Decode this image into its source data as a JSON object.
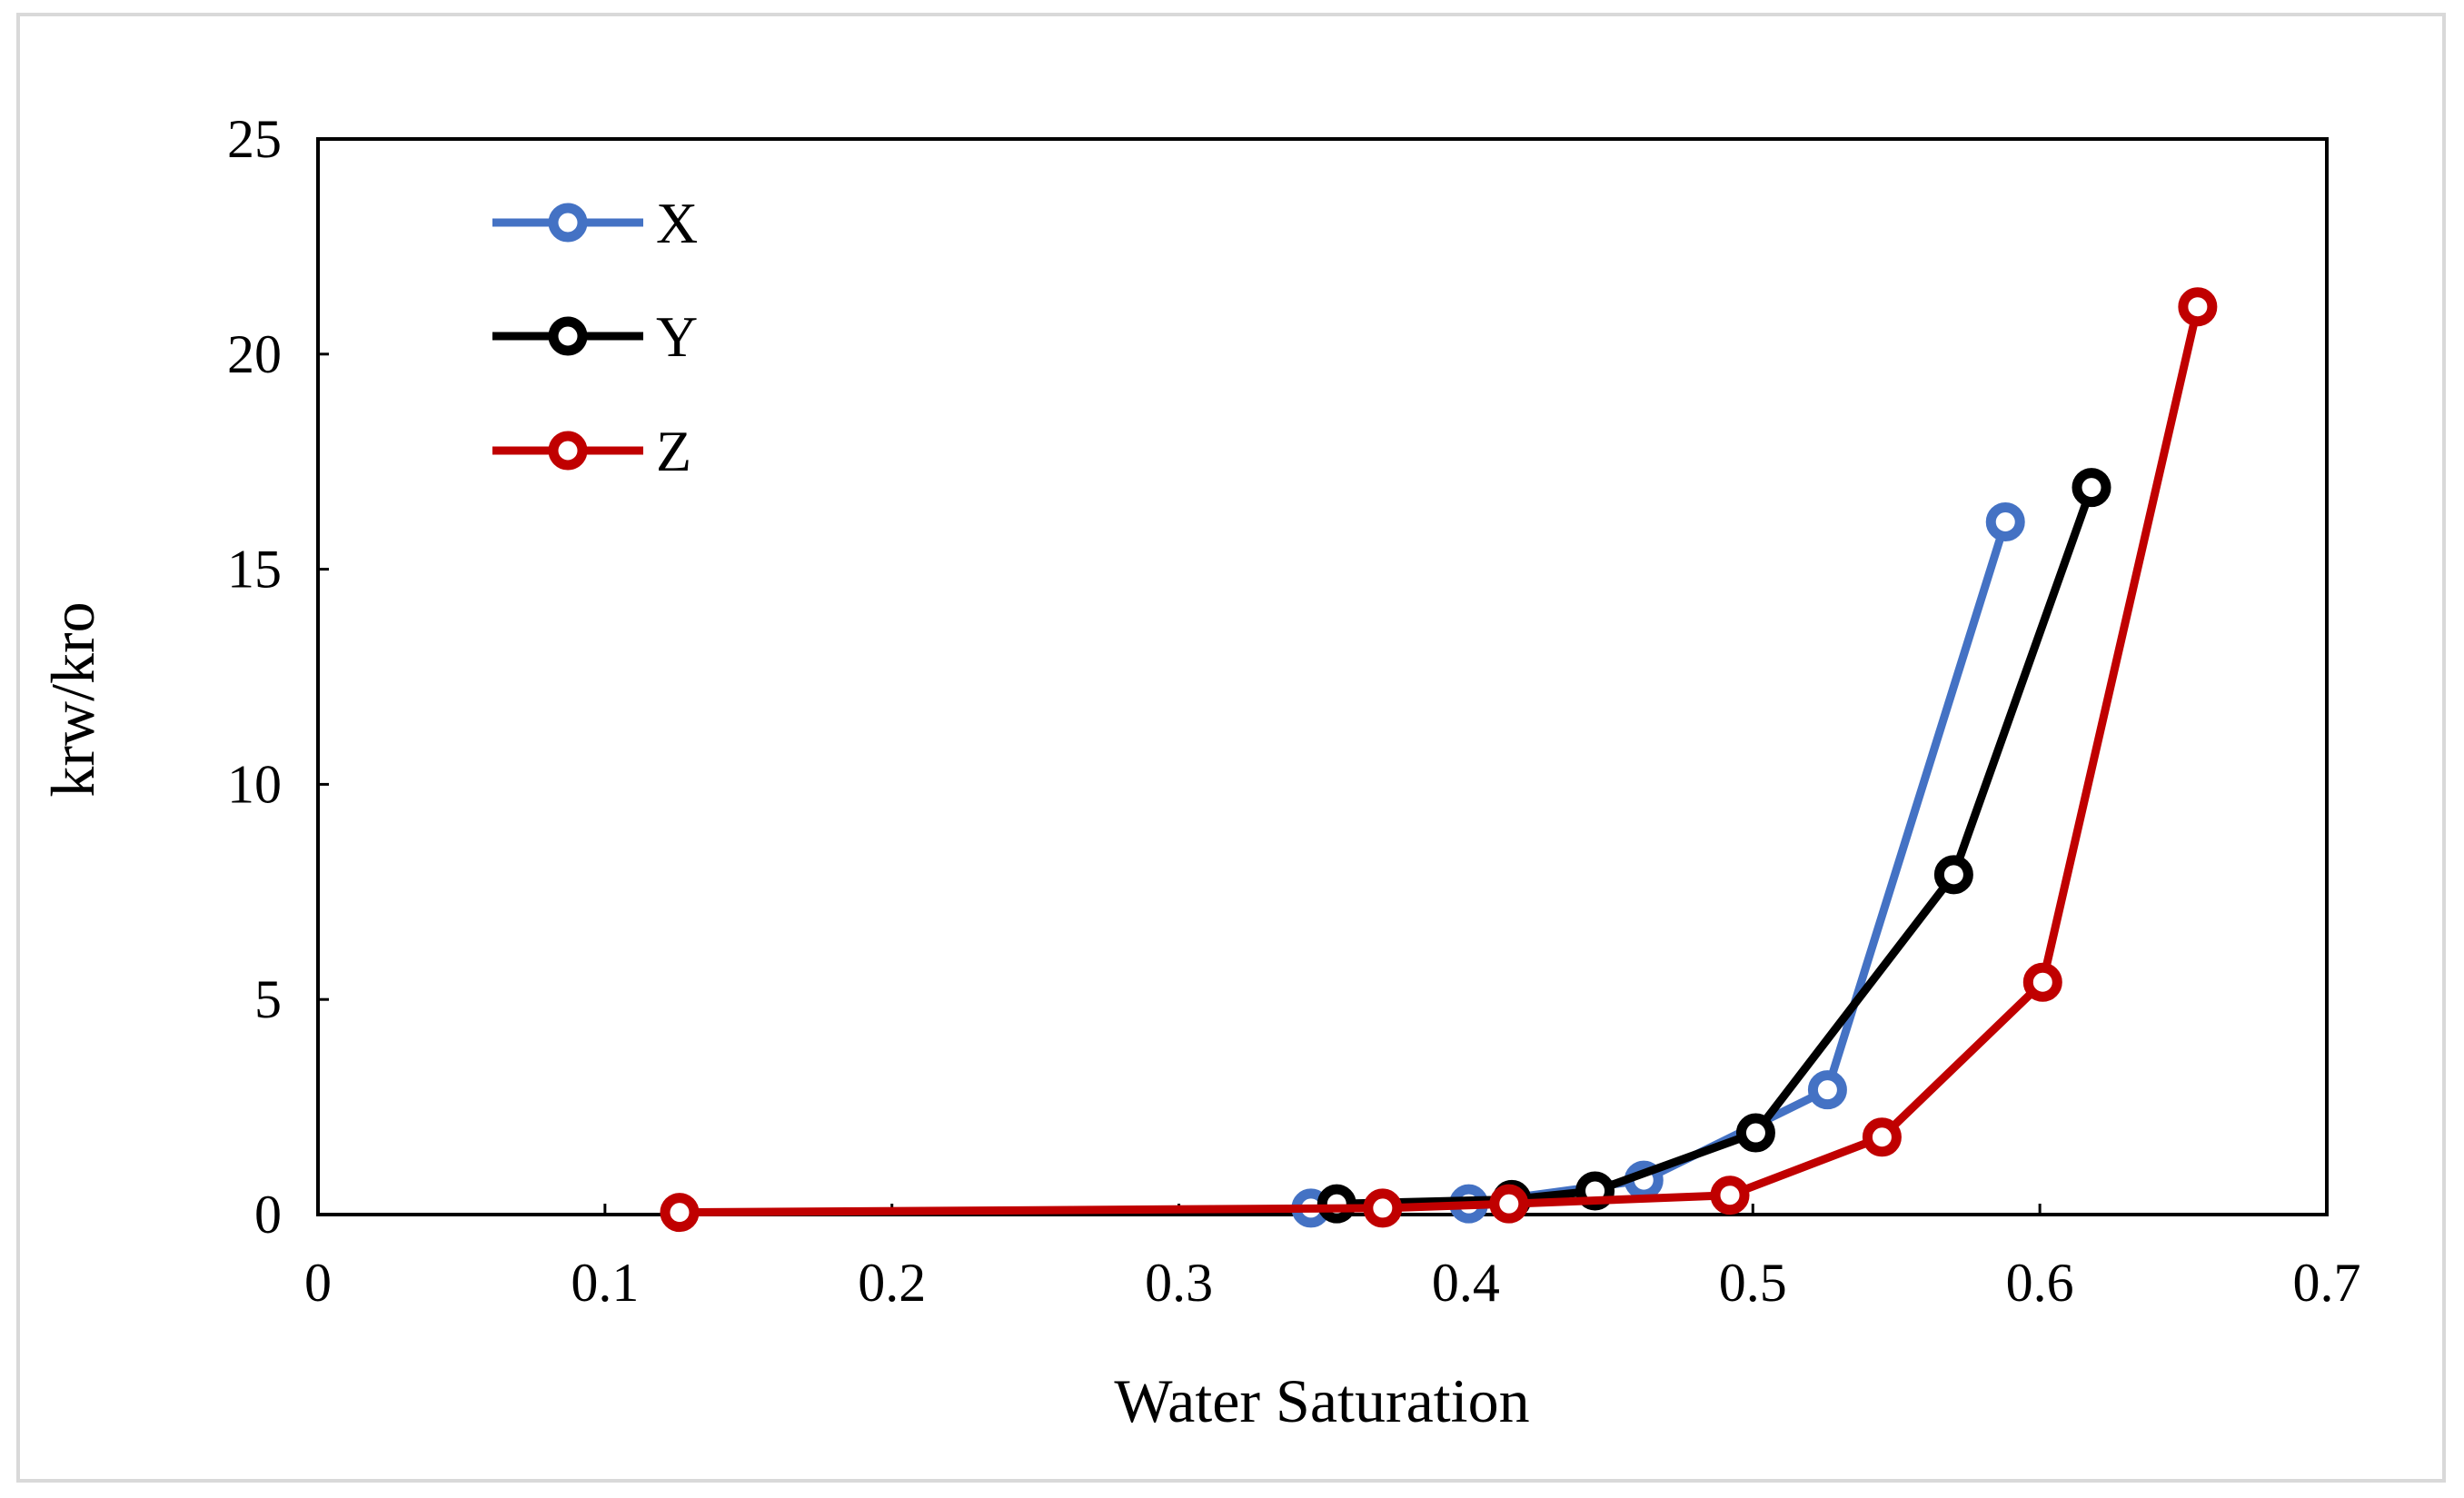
{
  "chart_data": {
    "type": "line",
    "title": "",
    "xlabel": "Water Saturation",
    "ylabel": "krw/kro",
    "xlim": [
      0,
      0.7
    ],
    "ylim": [
      0,
      25
    ],
    "xticks": [
      "0",
      "0.1",
      "0.2",
      "0.3",
      "0.4",
      "0.5",
      "0.6",
      "0.7"
    ],
    "yticks": [
      "0",
      "5",
      "10",
      "15",
      "20",
      "25"
    ],
    "grid": false,
    "legend_position": "top-left",
    "series": [
      {
        "name": "X",
        "color": "#4472c4",
        "x": [
          0.346,
          0.401,
          0.462,
          0.526,
          0.588
        ],
        "y": [
          0.15,
          0.25,
          0.8,
          2.9,
          16.1
        ]
      },
      {
        "name": "Y",
        "color": "#000000",
        "x": [
          0.355,
          0.416,
          0.445,
          0.501,
          0.57,
          0.618
        ],
        "y": [
          0.25,
          0.35,
          0.55,
          1.9,
          7.9,
          16.9
        ]
      },
      {
        "name": "Z",
        "color": "#c00000",
        "x": [
          0.126,
          0.371,
          0.415,
          0.492,
          0.545,
          0.601,
          0.655
        ],
        "y": [
          0.05,
          0.15,
          0.25,
          0.45,
          1.8,
          5.4,
          21.1
        ]
      }
    ]
  }
}
